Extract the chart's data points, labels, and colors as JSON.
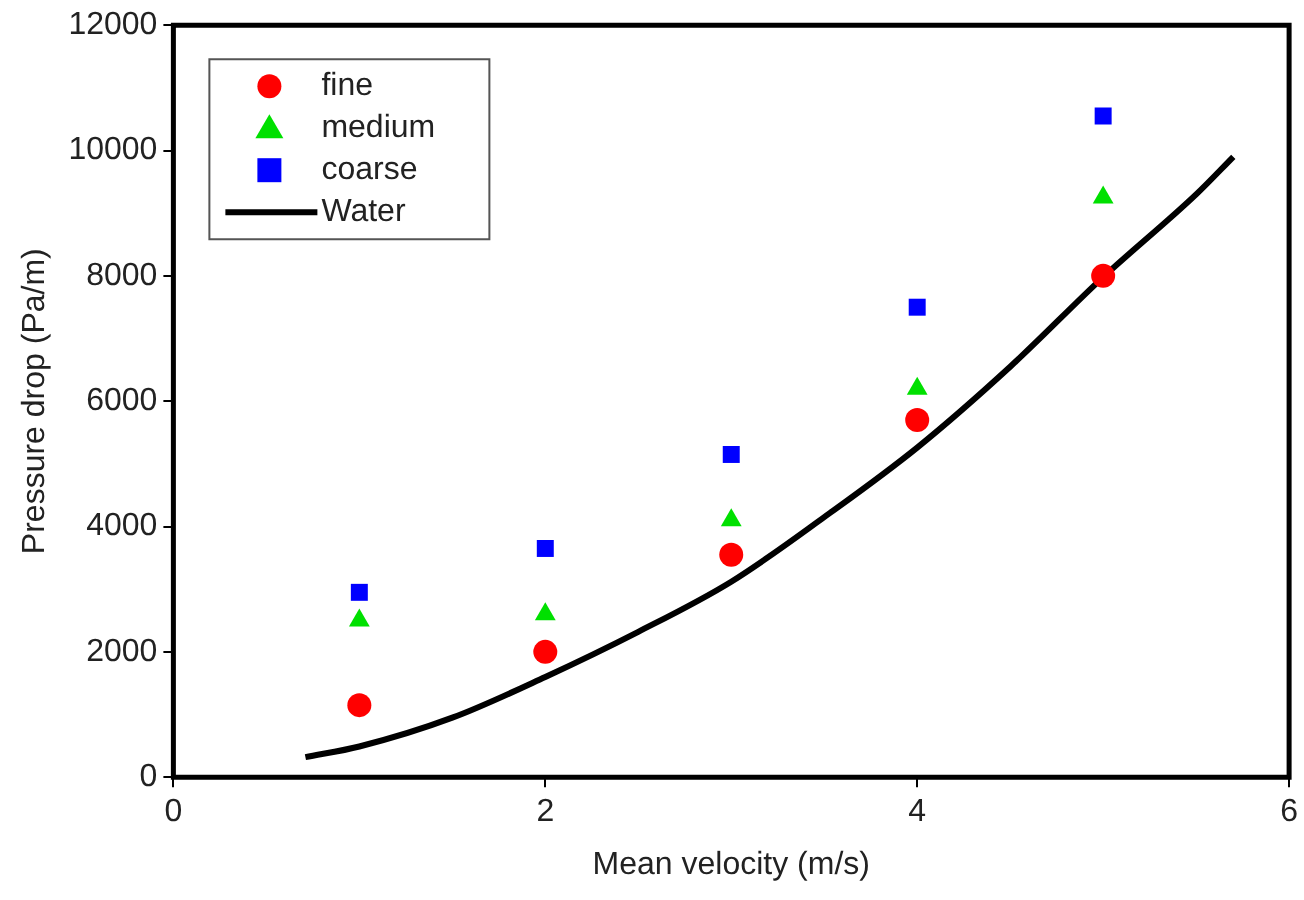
{
  "chart_data": {
    "type": "scatter",
    "xlabel": "Mean velocity (m/s)",
    "ylabel": "Pressure drop (Pa/m)",
    "xlim": [
      0,
      6
    ],
    "xticks": [
      0,
      2,
      4,
      6
    ],
    "ylim": [
      0,
      12000
    ],
    "yticks": [
      0,
      2000,
      4000,
      6000,
      8000,
      10000,
      12000
    ],
    "grid": false,
    "legend": "top left",
    "series": [
      {
        "name": "fine",
        "marker": "circle",
        "color": "#ff0000",
        "x": [
          1,
          2,
          3,
          4,
          5
        ],
        "values": [
          1150,
          2000,
          3550,
          5700,
          8000
        ]
      },
      {
        "name": "medium",
        "marker": "triangle",
        "color": "#00e000",
        "x": [
          1,
          2,
          3,
          4,
          5
        ],
        "values": [
          2500,
          2600,
          4100,
          6200,
          9250
        ]
      },
      {
        "name": "coarse",
        "marker": "square",
        "color": "#0000ff",
        "x": [
          1,
          2,
          3,
          4,
          5
        ],
        "values": [
          2950,
          3650,
          5150,
          7500,
          10550
        ]
      },
      {
        "name": "Water",
        "type": "line",
        "marker": "none",
        "line_style": "solid",
        "color": "#000000",
        "x": [
          0.71,
          1,
          1.5,
          2,
          2.5,
          3,
          3.5,
          4,
          4.5,
          5,
          5.5,
          5.7
        ],
        "values": [
          320,
          490,
          950,
          1600,
          2320,
          3120,
          4150,
          5260,
          6550,
          7980,
          9300,
          9900
        ]
      }
    ]
  }
}
